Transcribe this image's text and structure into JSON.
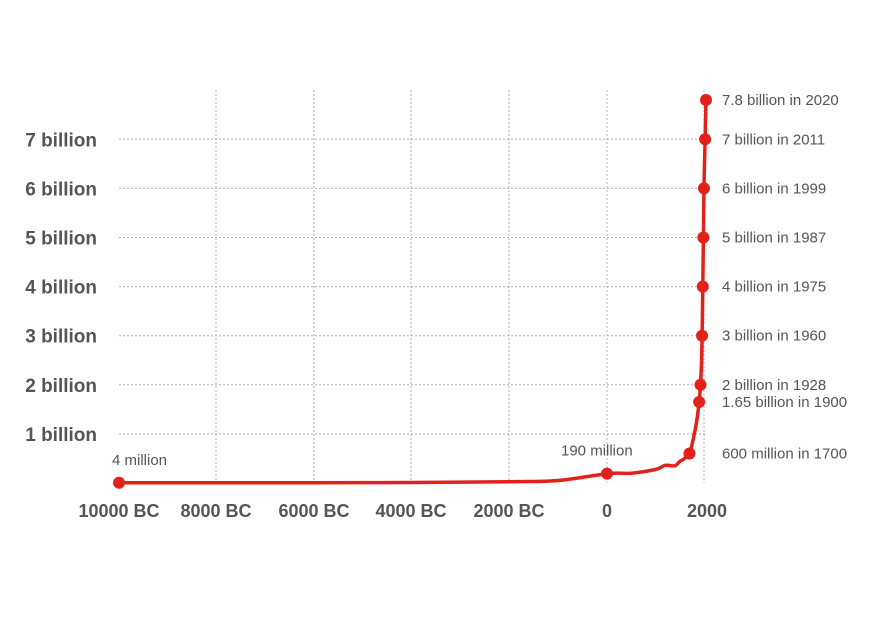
{
  "chart_data": {
    "type": "line",
    "title": "",
    "xlabel": "",
    "ylabel": "",
    "xlim": [
      -10000,
      2020
    ],
    "ylim": [
      0,
      7.8
    ],
    "grid": true,
    "colors": {
      "line": "#e3211b",
      "grid": "#b0b0b0",
      "text": "#555555"
    },
    "x_ticks": [
      {
        "value": -10000,
        "label": "10000 BC"
      },
      {
        "value": -8000,
        "label": "8000 BC"
      },
      {
        "value": -6000,
        "label": "6000 BC"
      },
      {
        "value": -4000,
        "label": "4000 BC"
      },
      {
        "value": -2000,
        "label": "2000 BC"
      },
      {
        "value": 0,
        "label": "0"
      },
      {
        "value": 2000,
        "label": "2000"
      }
    ],
    "y_ticks": [
      {
        "value": 1,
        "label": "1 billion"
      },
      {
        "value": 2,
        "label": "2 billion"
      },
      {
        "value": 3,
        "label": "3 billion"
      },
      {
        "value": 4,
        "label": "4 billion"
      },
      {
        "value": 5,
        "label": "5 billion"
      },
      {
        "value": 6,
        "label": "6 billion"
      },
      {
        "value": 7,
        "label": "7 billion"
      }
    ],
    "series": [
      {
        "x": [
          -10000,
          -8000,
          -6000,
          -4000,
          -2000,
          -1000,
          0,
          500,
          1000,
          1200,
          1400,
          1500,
          1600,
          1700,
          1750,
          1800,
          1850,
          1900,
          1928,
          1950,
          1960,
          1975,
          1987,
          1999,
          2011,
          2020
        ],
        "y": [
          0.004,
          0.005,
          0.007,
          0.01,
          0.027,
          0.05,
          0.19,
          0.2,
          0.275,
          0.36,
          0.35,
          0.44,
          0.5,
          0.6,
          0.77,
          1.0,
          1.26,
          1.65,
          2.0,
          2.5,
          3.0,
          4.0,
          5.0,
          6.0,
          7.0,
          7.8
        ]
      }
    ],
    "points": [
      {
        "x": -10000,
        "y": 0.004,
        "label": "4 million",
        "pos": "above"
      },
      {
        "x": 0,
        "y": 0.19,
        "label": "190 million",
        "pos": "above"
      },
      {
        "x": 1700,
        "y": 0.6,
        "label": "600 million in 1700",
        "pos": "right"
      },
      {
        "x": 1900,
        "y": 1.65,
        "label": "1.65 billion in 1900",
        "pos": "right"
      },
      {
        "x": 1928,
        "y": 2.0,
        "label": "2 billion in 1928",
        "pos": "right"
      },
      {
        "x": 1960,
        "y": 3.0,
        "label": "3 billion in 1960",
        "pos": "right"
      },
      {
        "x": 1975,
        "y": 4.0,
        "label": "4 billion in 1975",
        "pos": "right"
      },
      {
        "x": 1987,
        "y": 5.0,
        "label": "5 billion in 1987",
        "pos": "right"
      },
      {
        "x": 1999,
        "y": 6.0,
        "label": "6 billion in 1999",
        "pos": "right"
      },
      {
        "x": 2011,
        "y": 7.0,
        "label": "7 billion in 2011",
        "pos": "right"
      },
      {
        "x": 2020,
        "y": 7.8,
        "label": "7.8 billion in 2020",
        "pos": "right"
      }
    ]
  }
}
